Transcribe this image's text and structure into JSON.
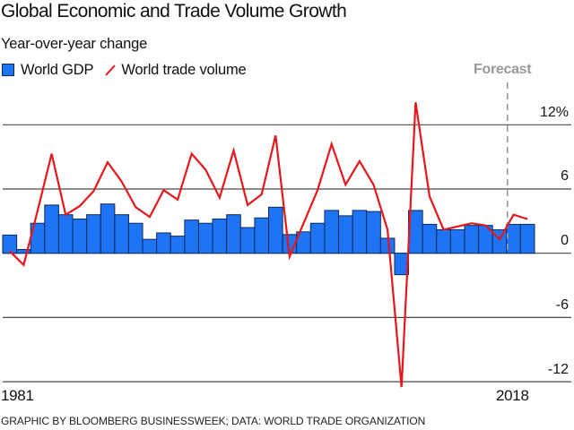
{
  "chart_data": {
    "type": "bar+line",
    "title": "Global Economic and Trade Volume Growth",
    "subtitle": "Year-over-year change",
    "xlabel": "",
    "ylabel": "Year-over-year change (%)",
    "ylim": [
      -12.8,
      14.5
    ],
    "yticks": [
      12,
      6,
      0,
      -6,
      -12
    ],
    "ytick_labels": [
      "12%",
      "6",
      "0",
      "-6",
      "-12"
    ],
    "grid": true,
    "x_tick_labels": [
      "1981",
      "2018"
    ],
    "categories": [
      "1981",
      "1982",
      "1983",
      "1984",
      "1985",
      "1986",
      "1987",
      "1988",
      "1989",
      "1990",
      "1991",
      "1992",
      "1993",
      "1994",
      "1995",
      "1996",
      "1997",
      "1998",
      "1999",
      "2000",
      "2001",
      "2002",
      "2003",
      "2004",
      "2005",
      "2006",
      "2007",
      "2008",
      "2009",
      "2010",
      "2011",
      "2012",
      "2013",
      "2014",
      "2015",
      "2016",
      "2017",
      "2018"
    ],
    "series": [
      {
        "name": "World GDP",
        "type": "bar",
        "color": "#1E74F5",
        "stroke": "#0d2a5a",
        "values": [
          1.7,
          0.35,
          2.8,
          4.5,
          3.6,
          3.2,
          3.6,
          4.6,
          3.6,
          2.8,
          1.3,
          1.9,
          1.6,
          3.1,
          2.8,
          3.2,
          3.6,
          2.4,
          3.3,
          4.3,
          1.75,
          2.0,
          2.8,
          4.0,
          3.5,
          4.0,
          3.9,
          1.4,
          -2.0,
          4.0,
          2.7,
          2.2,
          2.2,
          2.6,
          2.6,
          2.2,
          2.7,
          2.7
        ]
      },
      {
        "name": "World trade volume",
        "type": "line",
        "color": "#E8161B",
        "values": [
          0.2,
          -1.1,
          4.0,
          9.3,
          3.6,
          4.4,
          5.8,
          8.5,
          6.7,
          4.3,
          3.4,
          5.9,
          5.0,
          9.3,
          7.8,
          5.2,
          9.6,
          4.5,
          5.5,
          11.0,
          -0.3,
          2.8,
          5.9,
          10.2,
          6.4,
          8.6,
          6.4,
          2.2,
          -12.5,
          14.1,
          5.3,
          2.2,
          2.5,
          2.8,
          2.6,
          1.3,
          3.6,
          3.2
        ]
      }
    ],
    "annotations": [
      {
        "text": "Forecast",
        "position_year": "2016.5",
        "style": "dashed vertical line"
      }
    ],
    "legend": "top-left"
  },
  "legend": {
    "gdp_label": "World GDP",
    "trade_label": "World trade volume"
  },
  "forecast_label": "Forecast",
  "footer": "GRAPHIC BY BLOOMBERG BUSINESSWEEK; DATA: WORLD TRADE ORGANIZATION",
  "colors": {
    "gdp": "#1E74F5",
    "trade": "#E8161B",
    "forecast": "#9a9a9a",
    "grid": "#4a4a4a"
  }
}
